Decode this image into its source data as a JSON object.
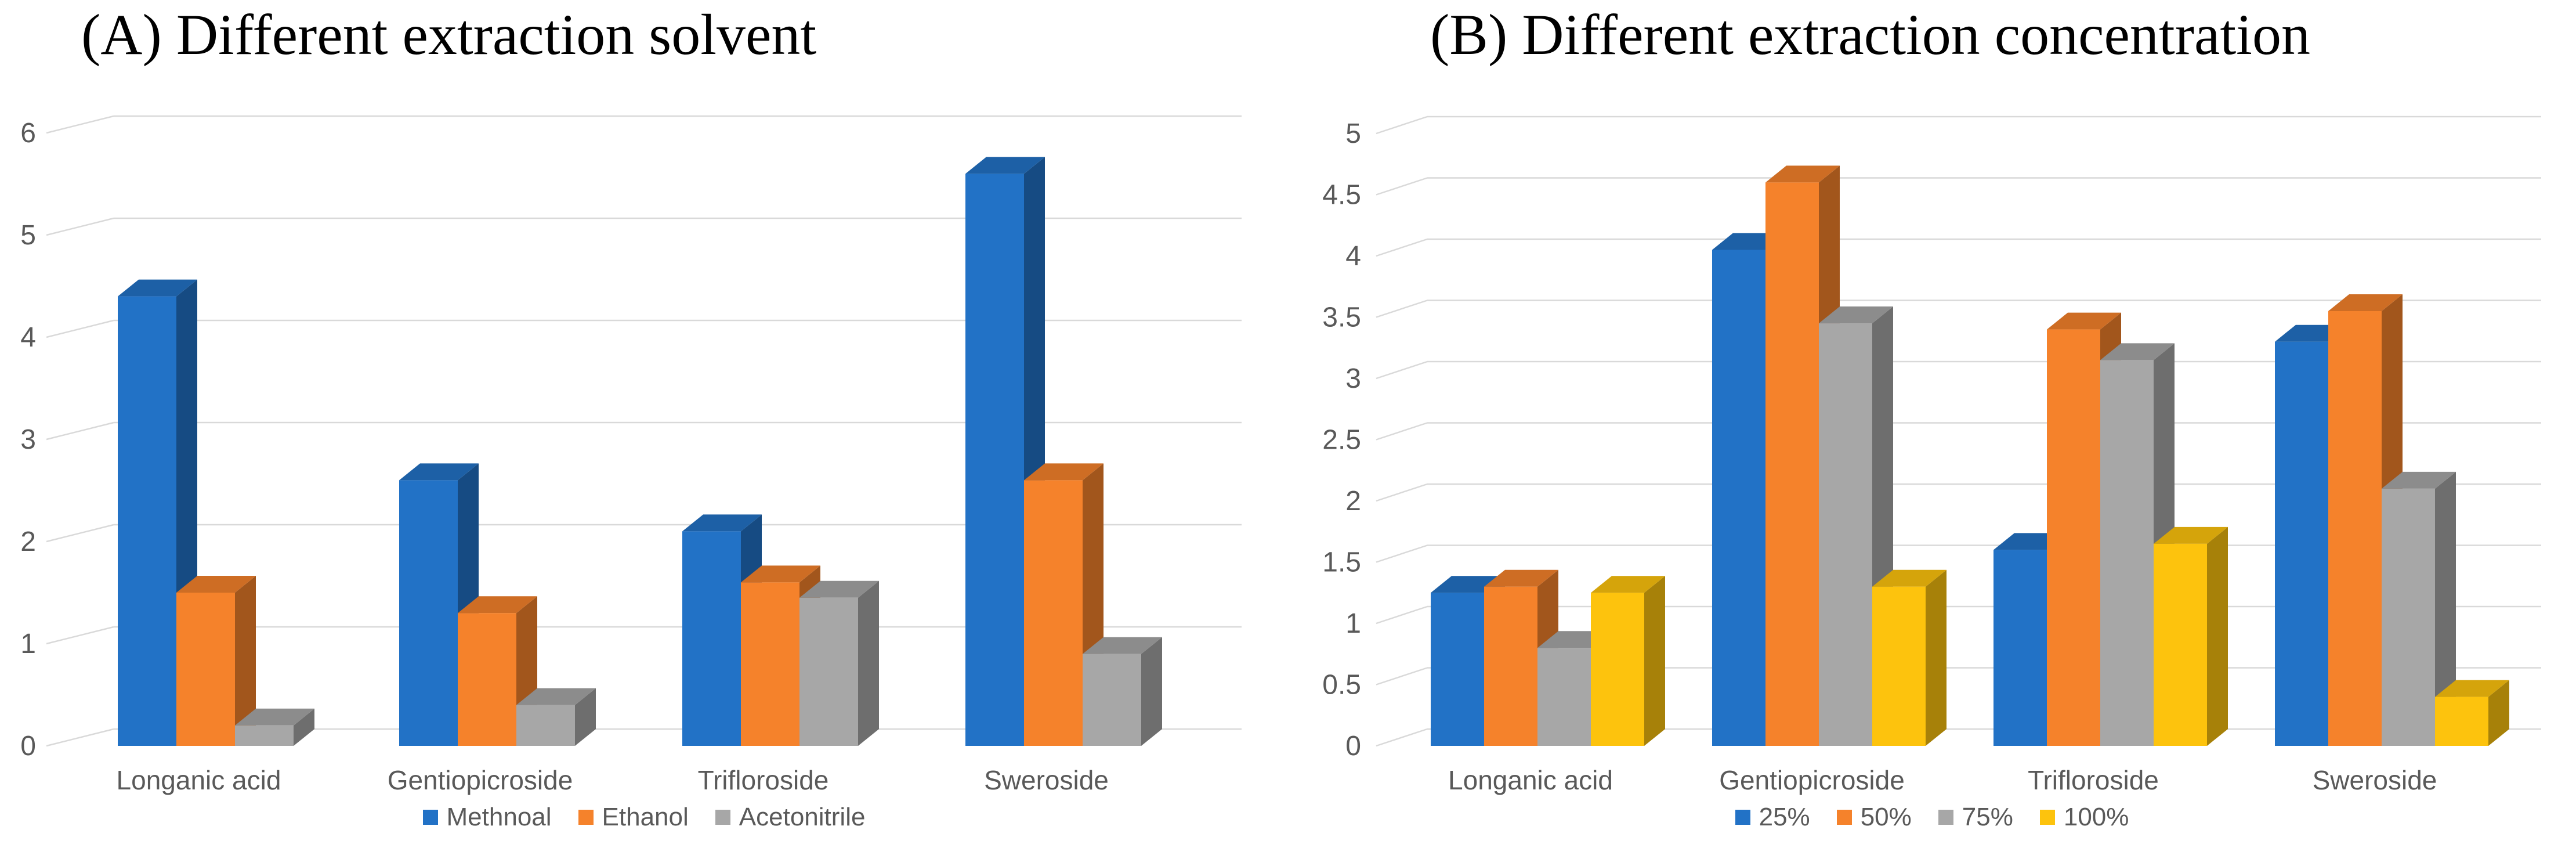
{
  "figure_background": "#FFFFFF",
  "text_colors": {
    "title": "#000000",
    "axis": "#595959",
    "gridline": "#D9D9D9"
  },
  "chart_data": [
    {
      "type": "bar",
      "style": "3d-clustered-column",
      "title": "(A) Different extraction solvent",
      "categories": [
        "Longanic acid",
        "Gentiopicroside",
        "Trifloroside",
        "Sweroside"
      ],
      "series": [
        {
          "name": "Methnoal",
          "color": "#2272C6",
          "values": [
            4.4,
            2.6,
            2.1,
            5.6
          ]
        },
        {
          "name": "Ethanol",
          "color": "#F5822B",
          "values": [
            1.5,
            1.3,
            1.6,
            2.6
          ]
        },
        {
          "name": "Acetonitrile",
          "color": "#A7A7A7",
          "values": [
            0.2,
            0.4,
            1.45,
            0.9
          ]
        }
      ],
      "xlabel": "",
      "ylabel": "",
      "ylim": [
        0,
        6
      ],
      "ytick_step": 1,
      "ytick_labels": [
        "0",
        "1",
        "2",
        "3",
        "4",
        "5",
        "6"
      ],
      "grid": true,
      "legend_position": "bottom"
    },
    {
      "type": "bar",
      "style": "3d-clustered-column",
      "title": "(B) Different extraction concentration",
      "categories": [
        "Longanic acid",
        "Gentiopicroside",
        "Trifloroside",
        "Sweroside"
      ],
      "series": [
        {
          "name": "25%",
          "color": "#2272C6",
          "values": [
            1.25,
            4.05,
            1.6,
            3.3
          ]
        },
        {
          "name": "50%",
          "color": "#F5822B",
          "values": [
            1.3,
            4.6,
            3.4,
            3.55
          ]
        },
        {
          "name": "75%",
          "color": "#A7A7A7",
          "values": [
            0.8,
            3.45,
            3.15,
            2.1
          ]
        },
        {
          "name": "100%",
          "color": "#FDC30D",
          "values": [
            1.25,
            1.3,
            1.65,
            0.4
          ]
        }
      ],
      "xlabel": "",
      "ylabel": "",
      "ylim": [
        0,
        5
      ],
      "ytick_step": 0.5,
      "ytick_labels": [
        "0",
        "0.5",
        "1",
        "1.5",
        "2",
        "2.5",
        "3",
        "3.5",
        "4",
        "4.5",
        "5"
      ],
      "grid": true,
      "legend_position": "bottom"
    }
  ]
}
